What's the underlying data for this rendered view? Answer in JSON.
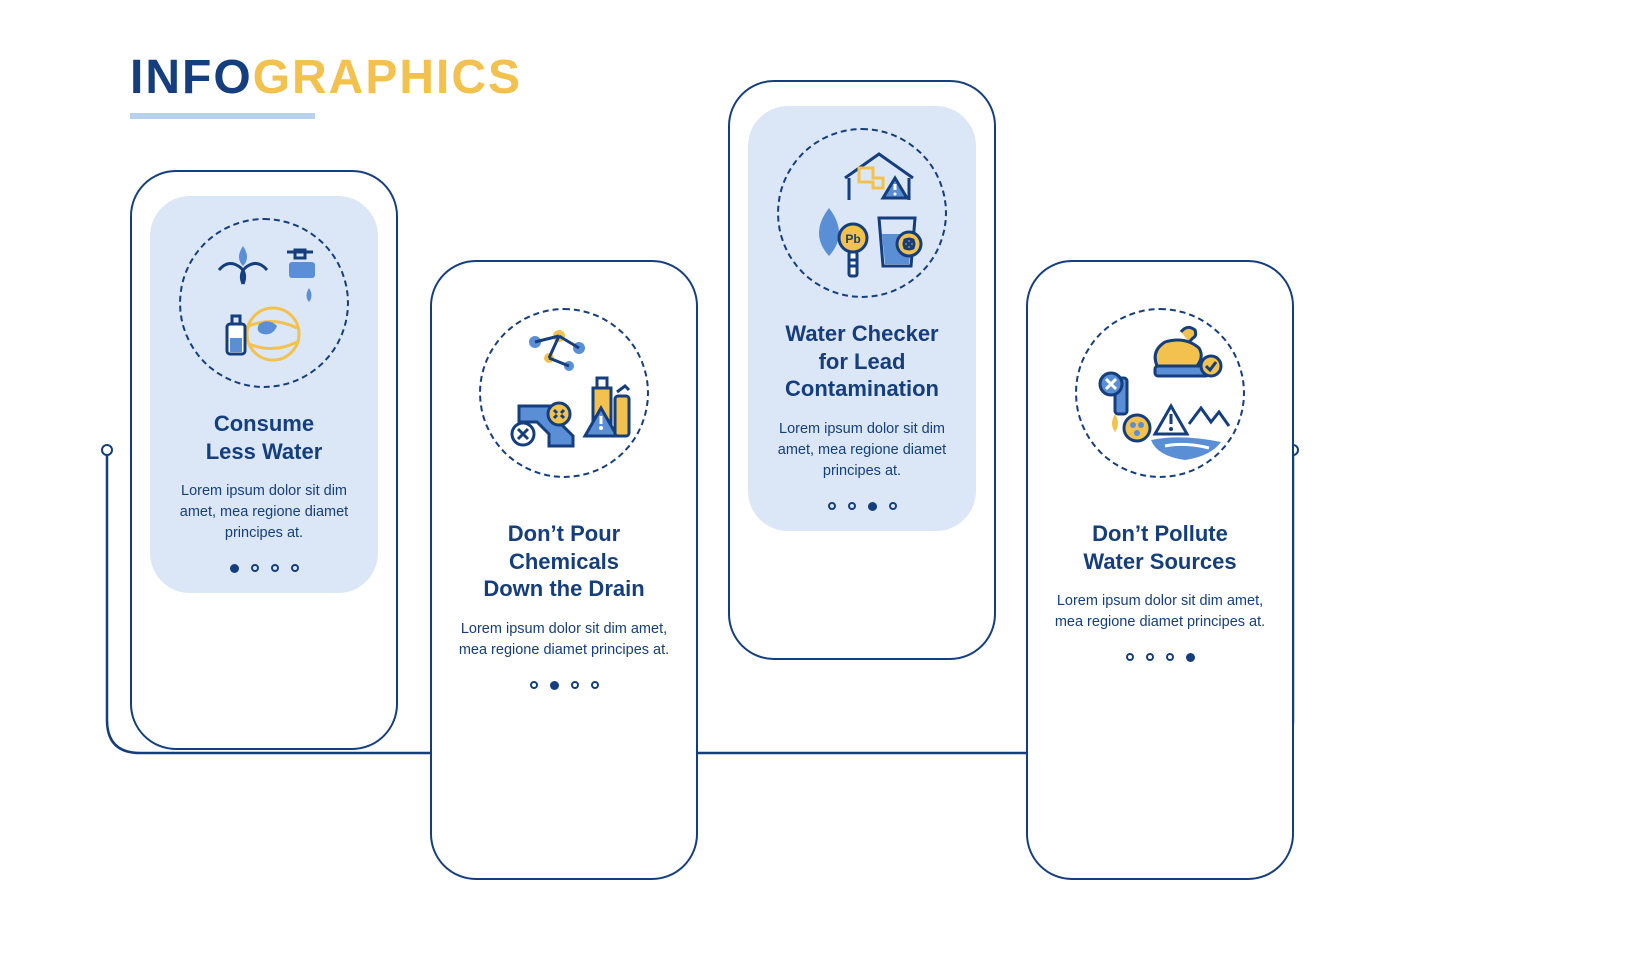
{
  "colors": {
    "dark_blue": "#153e7e",
    "yellow": "#f2c14e",
    "light_blue_bg": "#dbe7f6",
    "underline": "#b8d1ec",
    "mid_blue": "#5a8fd6",
    "white": "#ffffff"
  },
  "header": {
    "part1": "INFO",
    "part2": "GRAPHICS"
  },
  "body_text": "Lorem ipsum dolor sit dim amet, mea regione diamet principes at.",
  "cards": [
    {
      "title": "Consume\nLess Water",
      "active_dot": 0,
      "panel_bg": true,
      "pos": "odd"
    },
    {
      "title": "Don’t Pour\nChemicals\nDown the Drain",
      "active_dot": 1,
      "panel_bg": false,
      "pos": "even"
    },
    {
      "title": "Water Checker\nfor Lead\nContamination",
      "active_dot": 2,
      "panel_bg": true,
      "pos": "odd"
    },
    {
      "title": "Don’t Pollute\nWater Sources",
      "active_dot": 3,
      "panel_bg": false,
      "pos": "even"
    }
  ],
  "icons": {
    "card1": "water-save-icon",
    "card2": "chemicals-icon",
    "card3": "lead-check-icon",
    "card4": "pollution-icon"
  }
}
